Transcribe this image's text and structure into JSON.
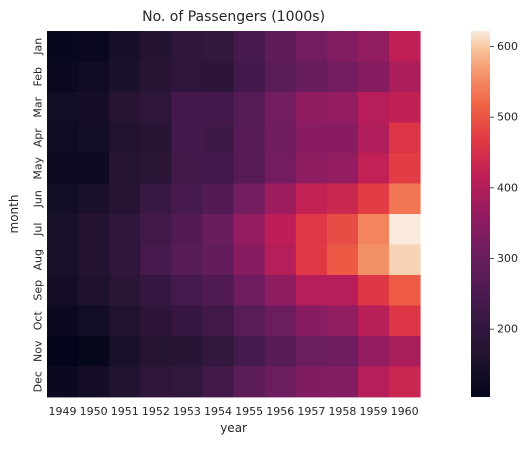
{
  "chart_data": {
    "type": "heatmap",
    "title": "No. of Passengers (1000s)",
    "xlabel": "year",
    "ylabel": "month",
    "x": [
      "1949",
      "1950",
      "1951",
      "1952",
      "1953",
      "1954",
      "1955",
      "1956",
      "1957",
      "1958",
      "1959",
      "1960"
    ],
    "y": [
      "Jan",
      "Feb",
      "Mar",
      "Apr",
      "May",
      "Jun",
      "Jul",
      "Aug",
      "Sep",
      "Oct",
      "Nov",
      "Dec"
    ],
    "values": [
      [
        112,
        115,
        145,
        171,
        196,
        204,
        242,
        284,
        315,
        340,
        360,
        417
      ],
      [
        118,
        126,
        150,
        180,
        196,
        188,
        233,
        277,
        301,
        318,
        342,
        391
      ],
      [
        132,
        141,
        178,
        193,
        236,
        235,
        267,
        317,
        356,
        362,
        406,
        419
      ],
      [
        129,
        135,
        163,
        181,
        235,
        227,
        269,
        313,
        348,
        348,
        396,
        461
      ],
      [
        121,
        125,
        172,
        183,
        229,
        234,
        270,
        318,
        355,
        363,
        420,
        472
      ],
      [
        135,
        149,
        178,
        218,
        243,
        264,
        315,
        374,
        422,
        435,
        472,
        535
      ],
      [
        148,
        170,
        199,
        230,
        264,
        302,
        364,
        413,
        465,
        491,
        548,
        622
      ],
      [
        148,
        170,
        199,
        242,
        272,
        293,
        347,
        405,
        467,
        505,
        559,
        606
      ],
      [
        136,
        158,
        184,
        209,
        237,
        259,
        312,
        355,
        404,
        404,
        463,
        508
      ],
      [
        119,
        133,
        162,
        191,
        211,
        229,
        274,
        306,
        347,
        359,
        407,
        461
      ],
      [
        104,
        114,
        146,
        172,
        180,
        203,
        237,
        271,
        305,
        310,
        362,
        390
      ],
      [
        118,
        140,
        166,
        194,
        201,
        229,
        278,
        306,
        336,
        337,
        405,
        432
      ]
    ],
    "vmin": 104,
    "vmax": 622,
    "colorbar_ticks": [
      200,
      300,
      400,
      500,
      600
    ],
    "colormap": "rocket",
    "grid": false
  }
}
